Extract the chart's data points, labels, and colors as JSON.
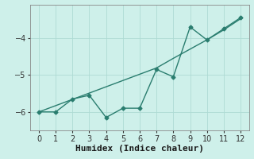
{
  "x": [
    0,
    1,
    2,
    3,
    4,
    5,
    6,
    7,
    8,
    9,
    10,
    11,
    12
  ],
  "y_line": [
    -6.0,
    -6.0,
    -5.65,
    -5.55,
    -6.15,
    -5.9,
    -5.9,
    -4.85,
    -5.05,
    -3.7,
    -4.05,
    -3.75,
    -3.45
  ],
  "y_trend": [
    -6.0,
    -5.83,
    -5.66,
    -5.49,
    -5.32,
    -5.15,
    -4.98,
    -4.81,
    -4.55,
    -4.3,
    -4.05,
    -3.78,
    -3.48
  ],
  "line_color": "#2a7d6f",
  "trend_color": "#2a7d6f",
  "bg_color": "#cef0ea",
  "grid_color": "#aedbd4",
  "xlabel": "Humidex (Indice chaleur)",
  "xlim": [
    -0.5,
    12.5
  ],
  "ylim": [
    -6.5,
    -3.1
  ],
  "yticks": [
    -6,
    -5,
    -4
  ],
  "xticks": [
    0,
    1,
    2,
    3,
    4,
    5,
    6,
    7,
    8,
    9,
    10,
    11,
    12
  ],
  "marker": "D",
  "marker_size": 2.5,
  "line_width": 1.0,
  "xlabel_fontsize": 8,
  "tick_fontsize": 7
}
